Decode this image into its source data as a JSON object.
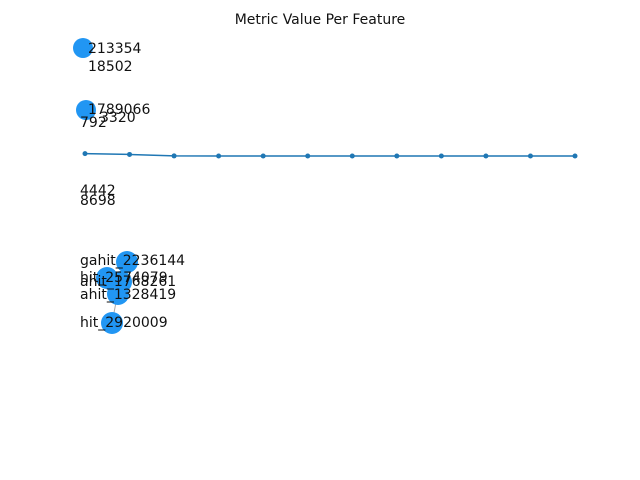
{
  "chart_data": {
    "type": "line",
    "title": "Metric Value Per Feature",
    "series": [
      {
        "values": [
          0.95,
          0.62,
          0.03,
          0.01,
          0.0,
          0.0,
          0.0,
          0.0,
          0.0,
          0.0,
          0.0,
          0.0
        ]
      }
    ],
    "ylim": [
      0,
      100
    ],
    "grid": false,
    "overlay_labels": [
      "213354",
      "18502",
      "1789066",
      "3320",
      "792",
      "4442",
      "8698",
      "gahit_2236144",
      "hit_2574079",
      "ahit_1768261",
      "ahit_1328419",
      "hit_2920009"
    ]
  },
  "colors": {
    "line": "#1f77b4",
    "node": "#2196f3",
    "edge": "#aaaaaa"
  }
}
